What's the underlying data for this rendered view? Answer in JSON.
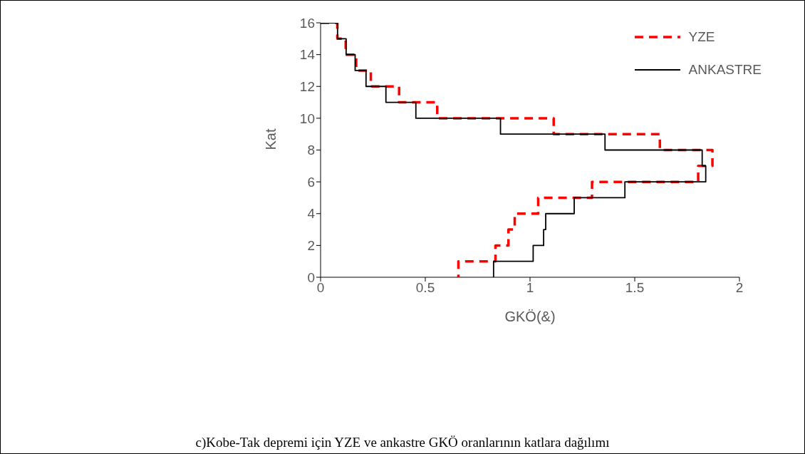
{
  "chart_data": {
    "type": "line",
    "xlabel": "GKÖ(&)",
    "ylabel": "Kat",
    "xlim": [
      0,
      2
    ],
    "xticks": [
      0,
      0.5,
      1,
      1.5,
      2
    ],
    "ylim": [
      0,
      16
    ],
    "yticks": [
      0,
      2,
      4,
      6,
      8,
      10,
      12,
      14,
      16
    ],
    "grid": false,
    "legend": "top right",
    "marker": "none",
    "annotations": [
      "c)Kobe-Tak depremi için  YZE ve ankastre  GKÖ oranlarının katlara dağılımı"
    ],
    "series": [
      {
        "name": "YZE",
        "color": "#ff0000",
        "line_style": "dashed",
        "x": [
          0,
          0.08,
          0.08,
          0.12,
          0.12,
          0.17,
          0.17,
          0.24,
          0.24,
          0.375,
          0.375,
          0.557,
          0.557,
          1.113,
          1.113,
          1.62,
          1.62,
          1.871,
          1.871,
          1.813,
          1.803,
          1.803,
          1.296,
          1.296,
          1.039,
          1.039,
          0.927,
          0.927,
          0.897,
          0.897,
          0.835,
          0.835,
          0.658,
          0.658
        ],
        "values": [
          16,
          16,
          15,
          15,
          14,
          14,
          13,
          13,
          12,
          12,
          11,
          11,
          10,
          10,
          9,
          9,
          8,
          8,
          7,
          7,
          7,
          6,
          6,
          5,
          5,
          4,
          4,
          3,
          3,
          2,
          2,
          1,
          1,
          0
        ]
      },
      {
        "name": "ANKASTRE",
        "color": "#000000",
        "line_style": "solid",
        "x": [
          0,
          0.081,
          0.081,
          0.122,
          0.122,
          0.165,
          0.165,
          0.217,
          0.217,
          0.312,
          0.312,
          0.455,
          0.455,
          0.859,
          0.859,
          1.358,
          1.358,
          1.822,
          1.822,
          1.839,
          1.839,
          1.453,
          1.453,
          1.211,
          1.211,
          1.075,
          1.075,
          1.065,
          1.065,
          1.015,
          1.015,
          0.826,
          0.826
        ],
        "values": [
          16,
          16,
          15,
          15,
          14,
          14,
          13,
          13,
          12,
          12,
          11,
          11,
          10,
          10,
          9,
          9,
          8,
          8,
          7,
          7,
          6,
          6,
          5,
          5,
          4,
          4,
          3,
          3,
          2,
          2,
          1,
          1,
          0
        ]
      }
    ]
  }
}
